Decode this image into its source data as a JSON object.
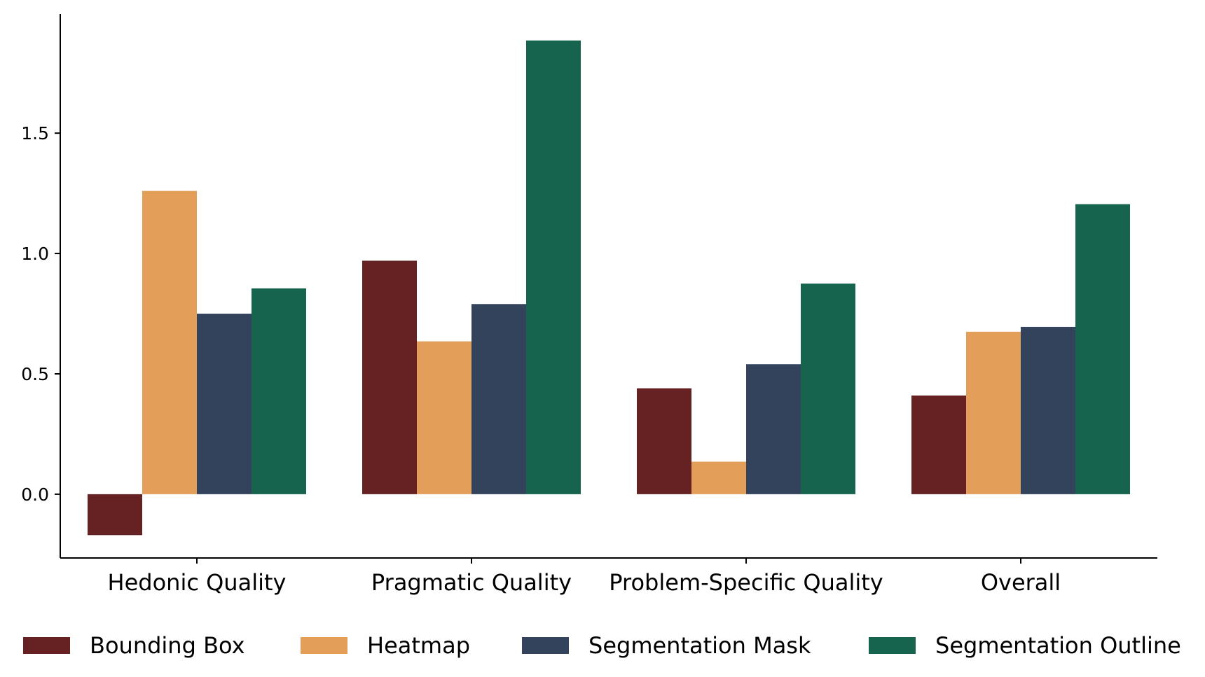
{
  "chart_data": {
    "type": "bar",
    "title": "",
    "xlabel": "",
    "ylabel": "",
    "categories": [
      "Hedonic Quality",
      "Pragmatic Quality",
      "Problem-Specific Quality",
      "Overall"
    ],
    "series": [
      {
        "name": "Bounding Box",
        "color": "#662222",
        "values": [
          -0.17,
          0.97,
          0.44,
          0.41
        ]
      },
      {
        "name": "Heatmap",
        "color": "#e39f5a",
        "values": [
          1.26,
          0.635,
          0.135,
          0.675
        ]
      },
      {
        "name": "Segmentation Mask",
        "color": "#33435c",
        "values": [
          0.75,
          0.79,
          0.54,
          0.695
        ]
      },
      {
        "name": "Segmentation Outline",
        "color": "#17644e",
        "values": [
          0.855,
          1.885,
          0.875,
          1.205
        ]
      }
    ],
    "ylim": [
      -0.265,
      1.995
    ],
    "yticks": [
      "0.0",
      "0.5",
      "1.0",
      "1.5"
    ],
    "grid": false,
    "legend_position": "bottom"
  }
}
